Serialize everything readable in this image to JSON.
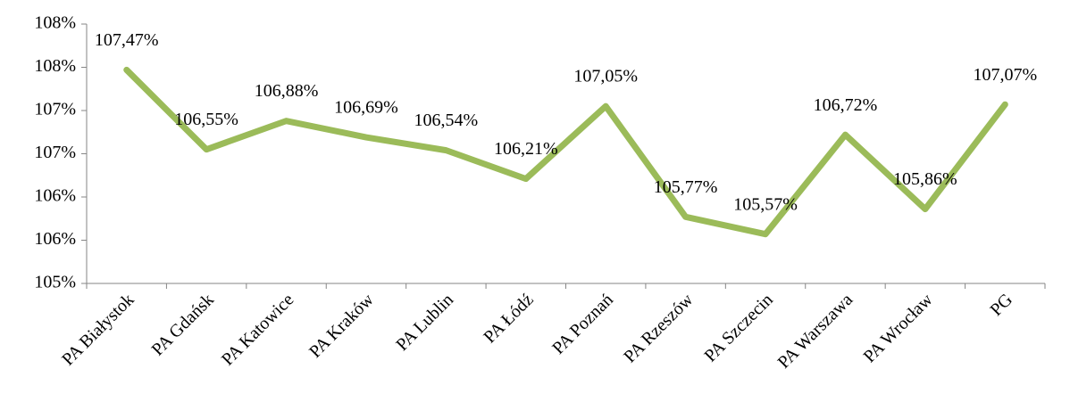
{
  "chart_data": {
    "type": "line",
    "categories": [
      "PA Białystok",
      "PA Gdańsk",
      "PA Katowice",
      "PA Kraków",
      "PA Lublin",
      "PA Łódź",
      "PA Poznań",
      "PA Rzeszów",
      "PA Szczecin",
      "PA Warszawa",
      "PA Wrocław",
      "PG"
    ],
    "series": [
      {
        "color": "#9bbb59",
        "values": [
          107.47,
          106.55,
          106.88,
          106.69,
          106.54,
          106.21,
          107.05,
          105.77,
          105.57,
          106.72,
          105.86,
          107.07
        ],
        "value_labels": [
          "107,47%",
          "106,55%",
          "106,88%",
          "106,69%",
          "106,54%",
          "106,21%",
          "107,05%",
          "105,77%",
          "105,57%",
          "106,72%",
          "105,86%",
          "107,07%"
        ]
      }
    ],
    "ylim": [
      105,
      108
    ],
    "yticks": [
      {
        "value": 105,
        "label": "105%"
      },
      {
        "value": 105.5,
        "label": "106%"
      },
      {
        "value": 106,
        "label": "106%"
      },
      {
        "value": 106.5,
        "label": "107%"
      },
      {
        "value": 107,
        "label": "107%"
      },
      {
        "value": 107.5,
        "label": "108%"
      },
      {
        "value": 108,
        "label": "108%"
      }
    ]
  }
}
